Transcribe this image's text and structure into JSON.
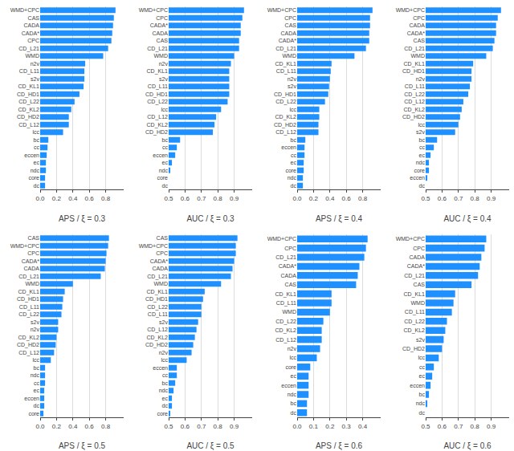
{
  "chart_data": [
    {
      "type": "bar",
      "orientation": "horizontal",
      "xlabel": "APS / ξ = 0.3",
      "categories": [
        "WMD+CPC",
        "CAS",
        "CADA",
        "CADA*",
        "CPC",
        "CD_L21",
        "WMD",
        "n2v",
        "CD_L11",
        "s2v",
        "CD_KL1",
        "CD_HD1",
        "CD_L22",
        "CD_KL2",
        "CD_HD2",
        "CD_L12",
        "lcc",
        "bc",
        "cc",
        "eccen",
        "ec",
        "ndc",
        "core",
        "dc"
      ],
      "values": [
        0.92,
        0.9,
        0.89,
        0.88,
        0.87,
        0.83,
        0.77,
        0.55,
        0.54,
        0.54,
        0.53,
        0.48,
        0.42,
        0.38,
        0.35,
        0.35,
        0.28,
        0.1,
        0.09,
        0.08,
        0.07,
        0.07,
        0.06,
        0.06
      ],
      "color": "#1E90FF",
      "xlim": [
        0.0,
        1.02
      ],
      "xticks": [
        {
          "value": 0.0,
          "label": "0.0"
        },
        0.2,
        0.4,
        0.6,
        0.8
      ],
      "grid": true
    },
    {
      "type": "bar",
      "orientation": "horizontal",
      "xlabel": "AUC / ξ = 0.3",
      "categories": [
        "WMD+CPC",
        "CPC",
        "CADA*",
        "CADA",
        "CAS",
        "CD_L21",
        "WMD",
        "n2v",
        "CD_KL1",
        "s2v",
        "CD_L11",
        "CD_HD1",
        "CD_L22",
        "lcc",
        "CD_L12",
        "CD_KL2",
        "CD_HD2",
        "bc",
        "cc",
        "eccen",
        "ec",
        "ndc",
        "core",
        "dc"
      ],
      "values": [
        0.96,
        0.95,
        0.94,
        0.94,
        0.93,
        0.93,
        0.9,
        0.88,
        0.87,
        0.87,
        0.87,
        0.87,
        0.86,
        0.82,
        0.79,
        0.78,
        0.77,
        0.57,
        0.55,
        0.54,
        0.52,
        0.51,
        0.5,
        0.5
      ],
      "color": "#1E90FF",
      "xlim": [
        0.5,
        1.01
      ],
      "xticks": [
        0.5,
        0.6,
        0.7,
        0.8,
        0.9
      ],
      "grid": true
    },
    {
      "type": "bar",
      "orientation": "horizontal",
      "xlabel": "APS / ξ = 0.4",
      "categories": [
        "WMD+CPC",
        "CPC",
        "CAS",
        "CADA",
        "CADA*",
        "CD_L21",
        "WMD",
        "CD_KL1",
        "CD_L11",
        "n2v",
        "s2v",
        "CD_HD1",
        "CD_L22",
        "lcc",
        "CD_KL2",
        "CD_HD2",
        "CD_L12",
        "bc",
        "eccen",
        "cc",
        "ec",
        "core",
        "ndc",
        "dc"
      ],
      "values": [
        0.92,
        0.89,
        0.89,
        0.88,
        0.88,
        0.84,
        0.7,
        0.42,
        0.41,
        0.4,
        0.39,
        0.38,
        0.34,
        0.27,
        0.27,
        0.26,
        0.26,
        0.1,
        0.09,
        0.09,
        0.08,
        0.08,
        0.07,
        0.07
      ],
      "color": "#1E90FF",
      "xlim": [
        0.0,
        1.02
      ],
      "xticks": [
        {
          "value": 0.0,
          "label": "0.0"
        },
        0.2,
        0.4,
        0.6,
        0.8
      ],
      "grid": true
    },
    {
      "type": "bar",
      "orientation": "horizontal",
      "xlabel": "AUC / ξ = 0.4",
      "categories": [
        "WMD+CPC",
        "CPC",
        "CADA",
        "CADA*",
        "CAS",
        "CD_L21",
        "WMD",
        "CD_KL1",
        "CD_HD1",
        "n2v",
        "CD_L11",
        "CD_L22",
        "CD_L12",
        "CD_KL2",
        "CD_HD2",
        "lcc",
        "s2v",
        "bc",
        "cc",
        "ec",
        "ndc",
        "core",
        "eccen",
        "dc"
      ],
      "values": [
        0.96,
        0.94,
        0.93,
        0.93,
        0.92,
        0.91,
        0.87,
        0.79,
        0.78,
        0.78,
        0.77,
        0.76,
        0.73,
        0.72,
        0.71,
        0.7,
        0.68,
        0.57,
        0.55,
        0.53,
        0.52,
        0.52,
        0.51,
        0.5
      ],
      "color": "#1E90FF",
      "xlim": [
        0.5,
        1.01
      ],
      "xticks": [
        0.5,
        0.6,
        0.7,
        0.8,
        0.9
      ],
      "grid": true
    },
    {
      "type": "bar",
      "orientation": "horizontal",
      "xlabel": "APS / ξ = 0.5",
      "categories": [
        "CAS",
        "WMD+CPC",
        "CPC",
        "CADA*",
        "CADA",
        "CD_L21",
        "WMD",
        "CD_KL1",
        "CD_HD1",
        "CD_L11",
        "CD_L22",
        "s2v",
        "n2v",
        "CD_KL2",
        "CD_HD2",
        "CD_L12",
        "lcc",
        "bc",
        "ndc",
        "cc",
        "ec",
        "eccen",
        "dc",
        "core"
      ],
      "values": [
        0.84,
        0.83,
        0.81,
        0.8,
        0.79,
        0.74,
        0.4,
        0.3,
        0.28,
        0.27,
        0.26,
        0.22,
        0.22,
        0.2,
        0.19,
        0.17,
        0.13,
        0.06,
        0.06,
        0.06,
        0.05,
        0.05,
        0.05,
        0.04
      ],
      "color": "#1E90FF",
      "xlim": [
        0.0,
        1.02
      ],
      "xticks": [
        {
          "value": 0.0,
          "label": "0.0"
        },
        0.2,
        0.4,
        0.6,
        0.8
      ],
      "grid": true
    },
    {
      "type": "bar",
      "orientation": "horizontal",
      "xlabel": "AUC / ξ = 0.5",
      "categories": [
        "CAS",
        "WMD+CPC",
        "CPC",
        "CADA*",
        "CADA",
        "CD_L21",
        "WMD",
        "CD_KL1",
        "CD_HD1",
        "CD_L22",
        "CD_L11",
        "s2v",
        "CD_L12",
        "CD_KL2",
        "CD_HD2",
        "n2v",
        "lcc",
        "eccen",
        "cc",
        "bc",
        "ndc",
        "ec",
        "dc",
        "core"
      ],
      "values": [
        0.92,
        0.91,
        0.91,
        0.9,
        0.89,
        0.88,
        0.82,
        0.72,
        0.71,
        0.7,
        0.7,
        0.68,
        0.67,
        0.66,
        0.65,
        0.64,
        0.61,
        0.55,
        0.55,
        0.54,
        0.53,
        0.52,
        0.52,
        0.51
      ],
      "color": "#1E90FF",
      "xlim": [
        0.5,
        1.01
      ],
      "xticks": [
        0.5,
        0.6,
        0.7,
        0.8,
        0.9
      ],
      "grid": true
    },
    {
      "type": "bar",
      "orientation": "horizontal",
      "xlabel": "APS / ξ = 0.6",
      "categories": [
        "WMD+CPC",
        "CPC",
        "CD_L21",
        "CADA*",
        "CADA",
        "CAS",
        "CD_KL1",
        "CD_L11",
        "WMD",
        "CD_L22",
        "CD_KL2",
        "CD_L12",
        "n2v",
        "lcc",
        "core",
        "ec",
        "eccen",
        "ndc",
        "bc",
        "dc"
      ],
      "values": [
        0.43,
        0.42,
        0.41,
        0.38,
        0.37,
        0.36,
        0.21,
        0.21,
        0.2,
        0.16,
        0.15,
        0.15,
        0.14,
        0.12,
        0.08,
        0.07,
        0.07,
        0.07,
        0.06,
        0.06
      ],
      "color": "#1E90FF",
      "xlim": [
        0.0,
        0.51
      ],
      "xticks": [
        {
          "value": 0.0,
          "label": "0.0"
        },
        0.1,
        0.2,
        0.3,
        0.4
      ],
      "grid": true
    },
    {
      "type": "bar",
      "orientation": "horizontal",
      "xlabel": "AUC / ξ = 0.6",
      "categories": [
        "WMD+CPC",
        "CPC",
        "CADA",
        "CADA*",
        "CD_L21",
        "CAS",
        "CD_KL1",
        "WMD",
        "CD_L11",
        "CD_L22",
        "CD_KL2",
        "s2v",
        "CD_HD2",
        "lcc",
        "cc",
        "ec",
        "eccen",
        "bc",
        "ndc",
        "dc"
      ],
      "values": [
        0.87,
        0.86,
        0.84,
        0.83,
        0.82,
        0.78,
        0.68,
        0.67,
        0.66,
        0.63,
        0.62,
        0.61,
        0.6,
        0.58,
        0.55,
        0.54,
        0.53,
        0.52,
        0.51,
        0.5
      ],
      "color": "#1E90FF",
      "xlim": [
        0.5,
        1.01
      ],
      "xticks": [
        0.5,
        0.6,
        0.7,
        0.8,
        0.9
      ],
      "grid": true
    }
  ]
}
